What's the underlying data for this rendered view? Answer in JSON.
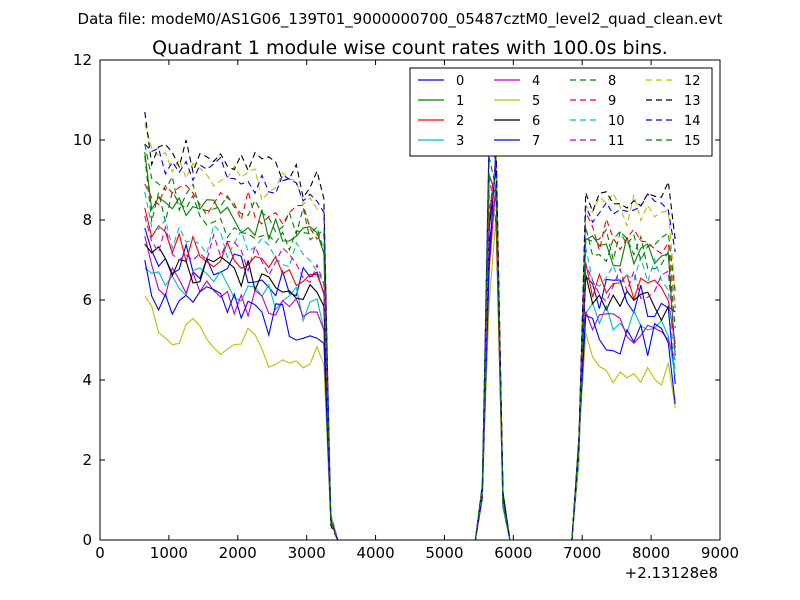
{
  "suptitle": "Data file: modeM0/AS1G06_139T01_9000000700_05487cztM0_level2_quad_clean.evt",
  "chart_data": {
    "type": "line",
    "title": "Quadrant 1 module wise count rates with 100.0s bins.",
    "xlabel": "",
    "ylabel": "",
    "x_offset_label": "+2.13128e8",
    "xlim": [
      0,
      9000
    ],
    "ylim": [
      0,
      12
    ],
    "x_ticks": [
      0,
      1000,
      2000,
      3000,
      4000,
      5000,
      6000,
      7000,
      8000,
      9000
    ],
    "y_ticks": [
      0,
      2,
      4,
      6,
      8,
      10,
      12
    ],
    "x_tick_labels": [
      "0",
      "1000",
      "2000",
      "3000",
      "4000",
      "5000",
      "6000",
      "7000",
      "8000",
      "9000"
    ],
    "y_tick_labels": [
      "0",
      "2",
      "4",
      "6",
      "8",
      "10",
      "12"
    ],
    "grid": false,
    "legend_position": "top-right",
    "legend_columns": 4,
    "segments": [
      {
        "x_start": 650,
        "x_end": 3250,
        "step": 100
      },
      {
        "x_start": 3350,
        "x_end": 5450,
        "step": 100
      },
      {
        "x_start": 5550,
        "x_end": 5850,
        "step": 100
      },
      {
        "x_start": 5950,
        "x_end": 6850,
        "step": 100
      },
      {
        "x_start": 6950,
        "x_end": 8350,
        "step": 100
      }
    ],
    "series": [
      {
        "name": "0",
        "color": "#0000ff",
        "dash": "solid",
        "level_a": 6.3,
        "level_b": 6.1,
        "start": 7.8,
        "end": 3.9
      },
      {
        "name": "1",
        "color": "#008000",
        "dash": "solid",
        "level_a": 7.6,
        "level_b": 7.3,
        "start": 9.7,
        "end": 4.6
      },
      {
        "name": "2",
        "color": "#ff0000",
        "dash": "solid",
        "level_a": 6.6,
        "level_b": 6.3,
        "start": 8.3,
        "end": 4.9
      },
      {
        "name": "3",
        "color": "#00bfbf",
        "dash": "solid",
        "level_a": 5.8,
        "level_b": 5.5,
        "start": 6.8,
        "end": 4.1
      },
      {
        "name": "4",
        "color": "#bf00bf",
        "dash": "solid",
        "level_a": 5.6,
        "level_b": 5.4,
        "start": 7.6,
        "end": 4.5
      },
      {
        "name": "5",
        "color": "#bfbf00",
        "dash": "solid",
        "level_a": 4.5,
        "level_b": 4.4,
        "start": 6.1,
        "end": 3.3
      },
      {
        "name": "6",
        "color": "#000000",
        "dash": "solid",
        "level_a": 6.2,
        "level_b": 6.0,
        "start": 7.4,
        "end": 5.7
      },
      {
        "name": "7",
        "color": "#0000ff",
        "dash": "solid",
        "level_a": 5.3,
        "level_b": 5.1,
        "start": 7.0,
        "end": 3.4
      },
      {
        "name": "8",
        "color": "#008000",
        "dash": "dashed",
        "level_a": 7.5,
        "level_b": 7.3,
        "start": 9.6,
        "end": 5.3
      },
      {
        "name": "9",
        "color": "#ff0000",
        "dash": "dashed",
        "level_a": 7.9,
        "level_b": 7.6,
        "start": 8.9,
        "end": 5.8
      },
      {
        "name": "10",
        "color": "#00bfbf",
        "dash": "dashed",
        "level_a": 6.9,
        "level_b": 6.7,
        "start": 8.7,
        "end": 4.2
      },
      {
        "name": "11",
        "color": "#bf00bf",
        "dash": "dashed",
        "level_a": 6.7,
        "level_b": 6.4,
        "start": 8.1,
        "end": 4.8
      },
      {
        "name": "12",
        "color": "#bfbf00",
        "dash": "dashed",
        "level_a": 8.6,
        "level_b": 8.3,
        "start": 10.4,
        "end": 6.2
      },
      {
        "name": "13",
        "color": "#000000",
        "dash": "dashed",
        "level_a": 8.9,
        "level_b": 8.6,
        "start": 10.7,
        "end": 7.5
      },
      {
        "name": "14",
        "color": "#0000ff",
        "dash": "dashed",
        "level_a": 8.7,
        "level_b": 8.3,
        "start": 9.9,
        "end": 7.2
      },
      {
        "name": "15",
        "color": "#008000",
        "dash": "dashed",
        "level_a": 7.9,
        "level_b": 7.4,
        "start": 9.9,
        "end": 6.2
      }
    ]
  }
}
